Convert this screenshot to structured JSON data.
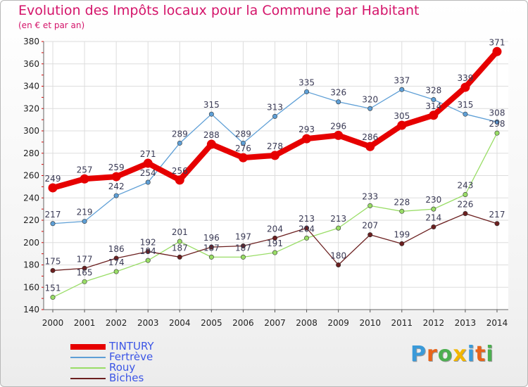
{
  "header": {
    "title": "Evolution des Impôts locaux pour la Commune par Habitant",
    "subtitle": "(en € et par an)"
  },
  "logo": {
    "text": "Proxiti",
    "letter_colors": [
      "#3a9ad9",
      "#e8641a",
      "#4caf50",
      "#f2b600",
      "#3a9ad9",
      "#e8641a",
      "#4caf50"
    ]
  },
  "chart_data": {
    "type": "line",
    "x": [
      "2000",
      "2001",
      "2002",
      "2003",
      "2004",
      "2005",
      "2006",
      "2007",
      "2008",
      "2009",
      "2010",
      "2011",
      "2012",
      "2013",
      "2014"
    ],
    "ylim": [
      140,
      380
    ],
    "yticks": [
      140,
      160,
      180,
      200,
      220,
      240,
      260,
      280,
      300,
      320,
      340,
      360,
      380
    ],
    "grid": true,
    "legend_position": "bottom-left",
    "series": [
      {
        "name": "TINTURY",
        "color": "#e60000",
        "emphasis": true,
        "values": [
          249,
          257,
          259,
          271,
          256,
          288,
          276,
          278,
          293,
          296,
          286,
          305,
          314,
          339,
          371
        ]
      },
      {
        "name": "Fertrève",
        "color": "#5e9fd6",
        "values": [
          217,
          219,
          242,
          254,
          289,
          315,
          289,
          313,
          335,
          326,
          320,
          337,
          328,
          315,
          308
        ]
      },
      {
        "name": "Rouy",
        "color": "#99dd66",
        "values": [
          151,
          165,
          174,
          184,
          201,
          187,
          187,
          191,
          204,
          213,
          233,
          228,
          230,
          243,
          298
        ]
      },
      {
        "name": "Biches",
        "color": "#6b1f1f",
        "values": [
          175,
          177,
          186,
          192,
          187,
          196,
          197,
          204,
          213,
          180,
          207,
          199,
          214,
          226,
          217
        ]
      }
    ]
  }
}
